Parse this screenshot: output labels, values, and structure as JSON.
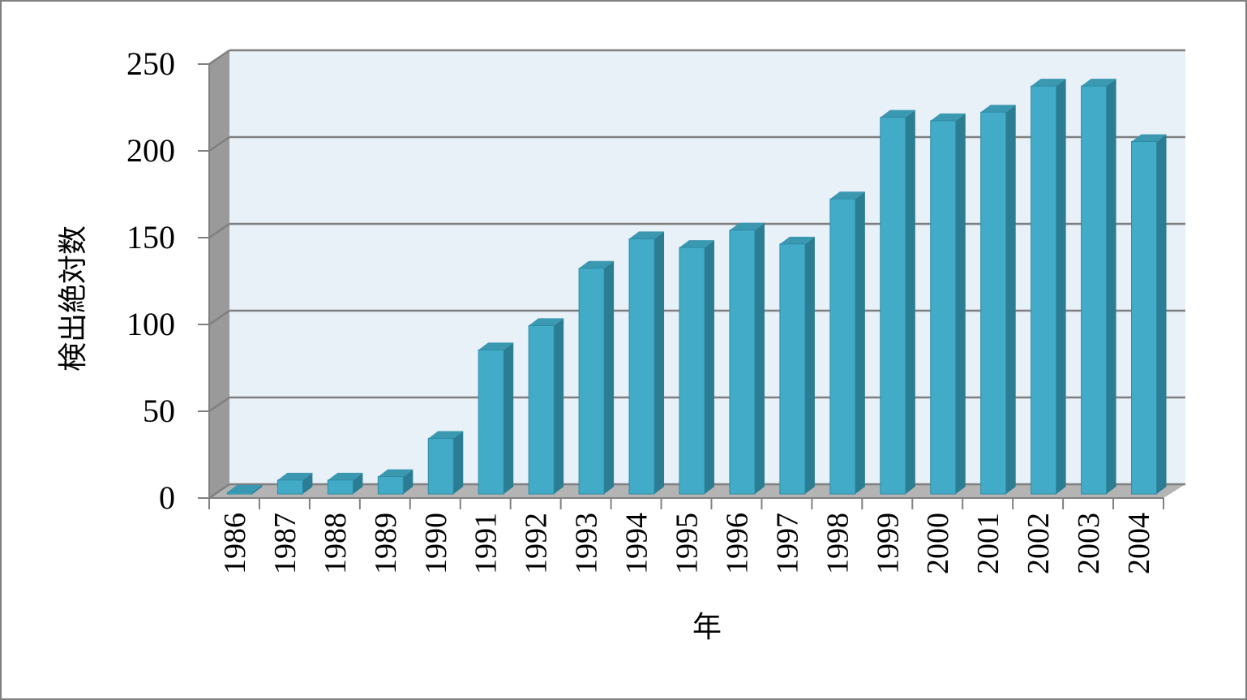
{
  "chart_data": {
    "type": "bar",
    "style": "3d-column",
    "categories": [
      "1986",
      "1987",
      "1988",
      "1989",
      "1990",
      "1991",
      "1992",
      "1993",
      "1994",
      "1995",
      "1996",
      "1997",
      "1998",
      "1999",
      "2000",
      "2001",
      "2002",
      "2003",
      "2004"
    ],
    "values": [
      1,
      8,
      8,
      10,
      32,
      83,
      97,
      130,
      147,
      142,
      152,
      144,
      170,
      217,
      215,
      220,
      235,
      235,
      203
    ],
    "xlabel": "年",
    "ylabel": "検出絶対数",
    "ylim": [
      0,
      250
    ],
    "yticks": [
      "0",
      "50",
      "100",
      "150",
      "200",
      "250"
    ],
    "grid": true,
    "legend": "none",
    "colors": {
      "bar_front": "#42acc8",
      "bar_side": "#2a7d92",
      "bar_top": "#3a98b1",
      "back_wall": "#e8f0f8",
      "side_wall": "#9a9a9a",
      "floor": "#b4b4b4",
      "gridline": "#7f7f7f"
    }
  }
}
